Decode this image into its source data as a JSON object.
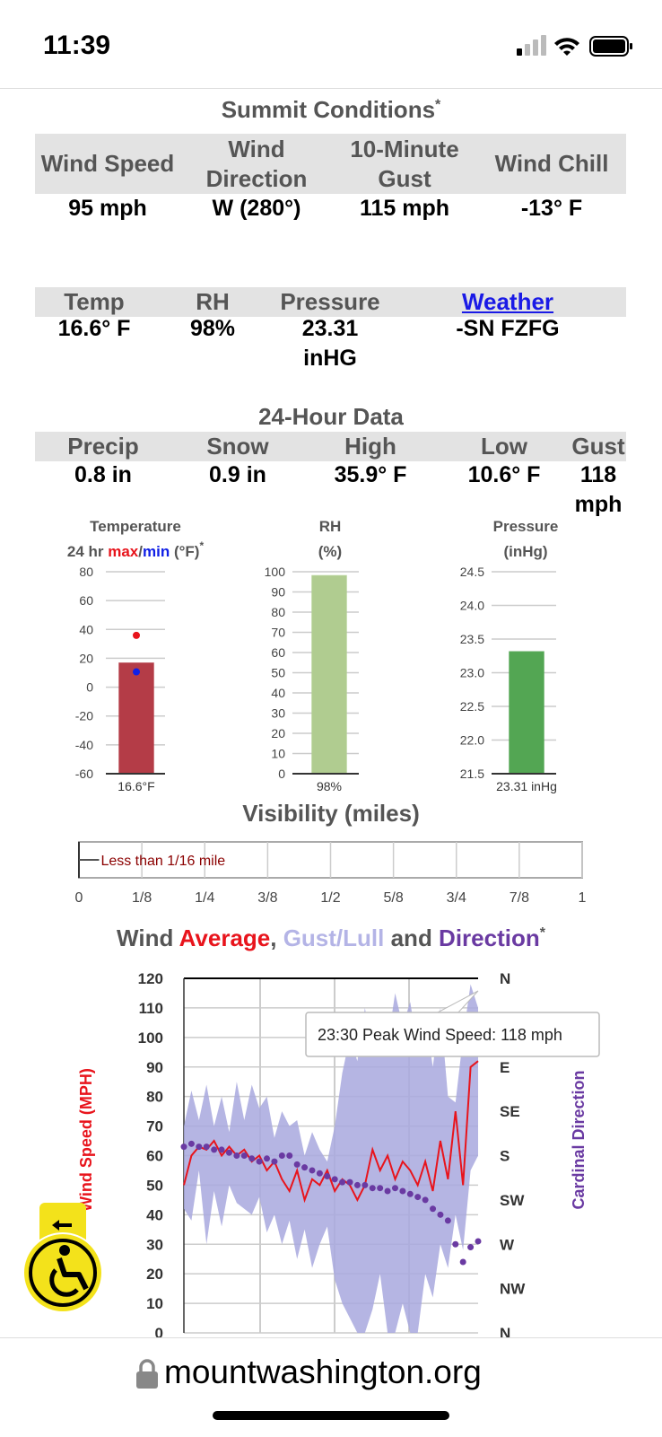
{
  "status_bar": {
    "time": "11:39"
  },
  "summit": {
    "title": "Summit Conditions",
    "note_mark": "*",
    "headers": [
      "Wind Speed",
      "Wind Direction",
      "10-Minute Gust",
      "Wind Chill"
    ],
    "values": [
      "95 mph",
      "W (280°)",
      "115 mph",
      "-13° F"
    ]
  },
  "current": {
    "headers": [
      "Temp",
      "RH",
      "Pressure",
      "Weather"
    ],
    "values": [
      "16.6° F",
      "98%",
      "23.31 inHG",
      "-SN FZFG"
    ]
  },
  "day": {
    "title": "24-Hour Data",
    "headers": [
      "Precip",
      "Snow",
      "High",
      "Low",
      "Gust"
    ],
    "values": [
      "0.8 in",
      "0.9 in",
      "35.9° F",
      "10.6° F",
      "118 mph"
    ]
  },
  "chart_data": [
    {
      "type": "bar",
      "title": "Temperature",
      "note_mark": "*",
      "subtitle_parts": [
        {
          "text": "24 hr "
        },
        {
          "text": "max",
          "color": "#e8141c"
        },
        {
          "text": "/"
        },
        {
          "text": "min",
          "color": "#1020e6"
        },
        {
          "text": " (°F)"
        }
      ],
      "values": [
        16.6
      ],
      "value_labels": [
        "16.6°F"
      ],
      "color": "#c8434f",
      "max": 35.9,
      "min": 10.6,
      "max_color": "#e8141c",
      "min_color": "#1020e6",
      "ylim": [
        -60,
        80
      ],
      "yticks": [
        -60,
        -40,
        -20,
        0,
        20,
        40,
        60,
        80
      ]
    },
    {
      "type": "bar",
      "title": "RH",
      "subtitle_parts": [
        {
          "text": "(%)"
        }
      ],
      "values": [
        98
      ],
      "value_labels": [
        "98%"
      ],
      "color": "#c4e3a0",
      "ylim": [
        0,
        100
      ],
      "yticks": [
        0,
        10,
        20,
        30,
        40,
        50,
        60,
        70,
        80,
        90,
        100
      ]
    },
    {
      "type": "bar",
      "title": "Pressure",
      "subtitle_parts": [
        {
          "text": "(inHg)"
        }
      ],
      "values": [
        23.31
      ],
      "value_labels": [
        "23.31 inHg"
      ],
      "color": "#5cb85c",
      "ylim": [
        21.5,
        24.5
      ],
      "yticks": [
        21.5,
        {
          "value": 22,
          "label": "22.0"
        },
        22.5,
        {
          "value": 23,
          "label": "23.0"
        },
        23.5,
        {
          "value": 24,
          "label": "24.0"
        },
        24.5
      ]
    },
    {
      "type": "hbar",
      "title": "Visibility (miles)",
      "values": [
        0.04
      ],
      "value_labels": [
        "Less than 1/16 mile"
      ],
      "color": "#8b0000",
      "xlim": [
        0,
        1
      ],
      "xticks": [
        0,
        {
          "value": 0.125,
          "label": "1/8"
        },
        {
          "value": 0.25,
          "label": "1/4"
        },
        {
          "value": 0.375,
          "label": "3/8"
        },
        {
          "value": 0.5,
          "label": "1/2"
        },
        {
          "value": 0.625,
          "label": "5/8"
        },
        {
          "value": 0.75,
          "label": "3/4"
        },
        {
          "value": 0.875,
          "label": "7/8"
        },
        1
      ]
    },
    {
      "type": "line",
      "note_mark": "*",
      "title_parts": [
        {
          "text": "Wind "
        },
        {
          "text": "Average",
          "color": "#e8141c"
        },
        {
          "text": ", "
        },
        {
          "text": "Gust/Lull",
          "color": "#b4b4e6"
        },
        {
          "text": " and "
        },
        {
          "text": "Direction",
          "color": "#6a3aa2"
        }
      ],
      "y_label": "Wind Speed (MPH)",
      "y2_label": "Cardinal Direction",
      "annotation": "23:30 Peak Wind Speed: 118 mph",
      "ylim": [
        0,
        120
      ],
      "yticks": [
        0,
        10,
        20,
        30,
        40,
        50,
        60,
        70,
        80,
        90,
        100,
        110,
        120
      ],
      "y2lim": [
        360,
        0
      ],
      "y2ticks": [
        {
          "value": 0,
          "label": "N"
        },
        {
          "value": 90,
          "label": "E"
        },
        {
          "value": 135,
          "label": "SE"
        },
        {
          "value": 180,
          "label": "S"
        },
        {
          "value": 225,
          "label": "SW"
        },
        {
          "value": 270,
          "label": "W"
        },
        {
          "value": 315,
          "label": "NW"
        },
        {
          "value": 360,
          "label": "N"
        }
      ],
      "grid": true,
      "series": [
        {
          "name": "Average",
          "color": "#e8141c",
          "values": [
            50,
            60,
            63,
            62,
            65,
            60,
            63,
            60,
            62,
            58,
            60,
            55,
            58,
            52,
            48,
            55,
            45,
            52,
            50,
            55,
            48,
            52,
            50,
            45,
            50,
            62,
            55,
            60,
            52,
            58,
            55,
            50,
            58,
            48,
            65,
            52,
            75,
            50,
            90,
            92
          ]
        },
        {
          "name": "Gust",
          "color": "#a8a8de",
          "values": [
            70,
            82,
            72,
            84,
            70,
            80,
            68,
            85,
            72,
            84,
            76,
            80,
            66,
            75,
            70,
            72,
            60,
            68,
            62,
            58,
            70,
            88,
            100,
            92,
            110,
            95,
            105,
            98,
            115,
            104,
            112,
            96,
            108,
            90,
            110,
            80,
            78,
            100,
            118,
            110
          ]
        },
        {
          "name": "Lull",
          "color": "#a8a8de",
          "values": [
            42,
            38,
            55,
            30,
            48,
            36,
            50,
            44,
            42,
            40,
            46,
            34,
            40,
            30,
            38,
            25,
            35,
            22,
            30,
            36,
            18,
            10,
            5,
            0,
            0,
            8,
            20,
            0,
            0,
            10,
            0,
            0,
            20,
            12,
            30,
            22,
            40,
            28,
            55,
            60
          ]
        },
        {
          "name": "Direction",
          "color": "#6a3aa2",
          "axis": "y2",
          "values": [
            171,
            168,
            171,
            171,
            174,
            174,
            177,
            180,
            180,
            183,
            186,
            183,
            186,
            180,
            180,
            189,
            192,
            195,
            198,
            201,
            204,
            207,
            207,
            210,
            210,
            213,
            213,
            216,
            213,
            216,
            219,
            222,
            225,
            234,
            240,
            246,
            270,
            288,
            273,
            267
          ]
        }
      ]
    }
  ],
  "browser": {
    "url": "mountwashington.org"
  }
}
